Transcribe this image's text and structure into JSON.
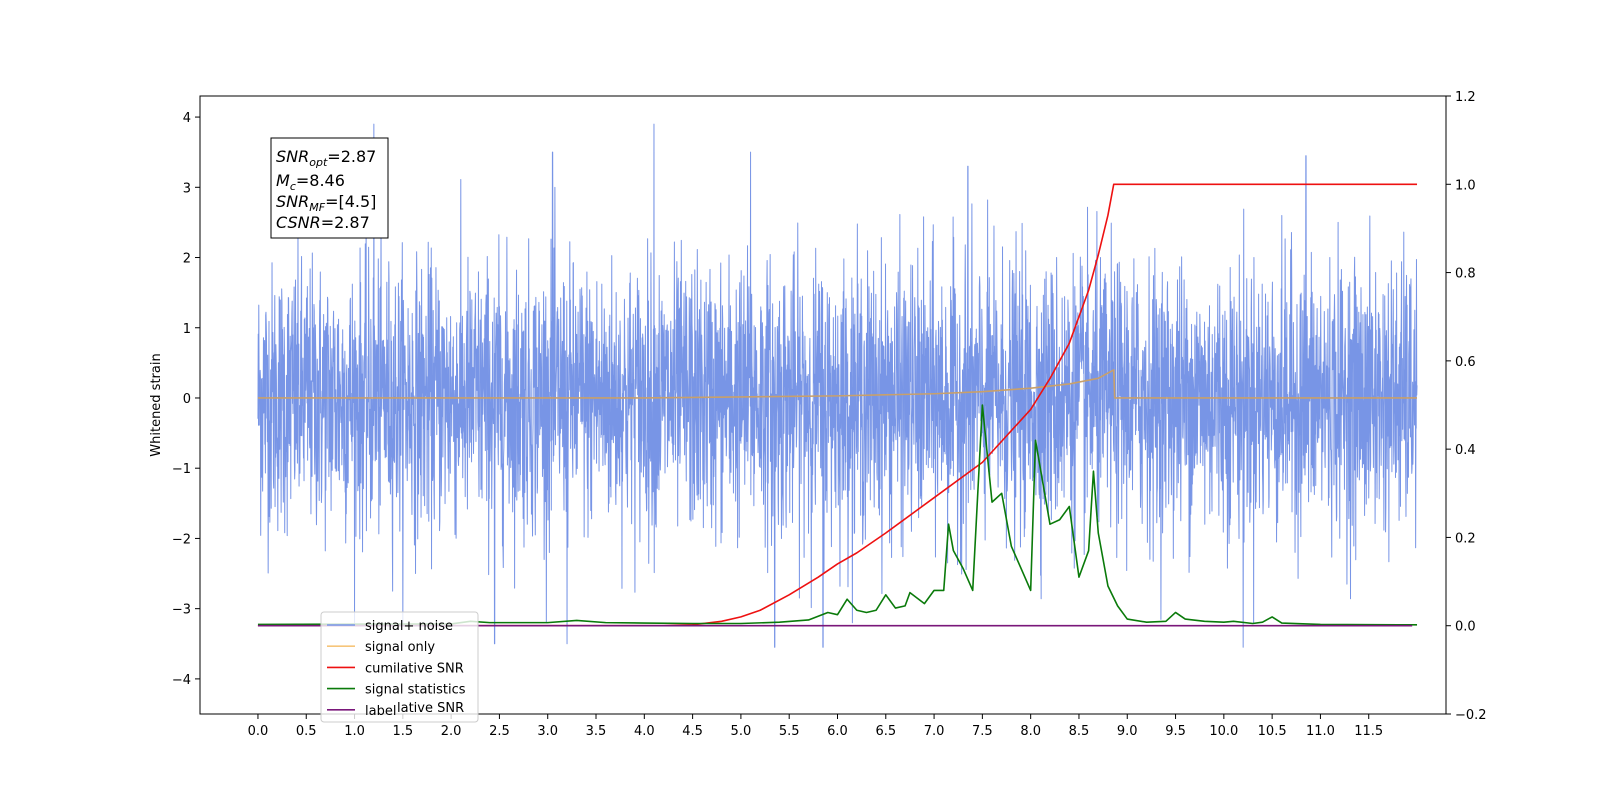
{
  "chart_data": {
    "type": "line",
    "ylabel": "Whitened strain",
    "xlim": [
      -0.6,
      12.3
    ],
    "ylim": [
      -4.5,
      4.3
    ],
    "ylim_right": [
      -0.2,
      1.2
    ],
    "x_ticks": [
      0.0,
      0.5,
      1.0,
      1.5,
      2.0,
      2.5,
      3.0,
      3.5,
      4.0,
      4.5,
      5.0,
      5.5,
      6.0,
      6.5,
      7.0,
      7.5,
      8.0,
      8.5,
      9.0,
      9.5,
      10.0,
      10.5,
      11.0,
      11.5
    ],
    "x_tick_labels": [
      "0.0",
      "0.5",
      "1.0",
      "1.5",
      "2.0",
      "2.5",
      "3.0",
      "3.5",
      "4.0",
      "4.5",
      "5.0",
      "5.5",
      "6.0",
      "6.5",
      "7.0",
      "7.5",
      "8.0",
      "8.5",
      "9.0",
      "9.5",
      "10.0",
      "10.5",
      "11.0",
      "11.5"
    ],
    "y_ticks": [
      4,
      3,
      2,
      1,
      0,
      -1,
      -2,
      -3,
      -4
    ],
    "y_tick_labels": [
      "4",
      "3",
      "2",
      "1",
      "0",
      "−1",
      "−2",
      "−3",
      "−4"
    ],
    "y_ticks_right": [
      1.2,
      1.0,
      0.8,
      0.6,
      0.4,
      0.2,
      0.0,
      -0.2
    ],
    "y_tick_labels_right": [
      "1.2",
      "1.0",
      "0.8",
      "0.6",
      "0.4",
      "0.2",
      "0.0",
      "−0.2"
    ],
    "grid": false,
    "legend_position": "lower-left",
    "annotation": {
      "snr_opt": {
        "base": "SNR",
        "sub": "opt",
        "value": "=2.87"
      },
      "mc": {
        "base": "M",
        "sub": "c",
        "value": "=8.46"
      },
      "snr_mf": {
        "base": "SNR",
        "sub": "MF",
        "value": "=[4.5]"
      },
      "csnr": {
        "base": "CSNR",
        "value": "=2.87"
      }
    },
    "series": [
      {
        "name": "signal+ noise",
        "color": "#7895e6",
        "axis": "left",
        "x_range": [
          0.0,
          12.0
        ],
        "amplitude_range": [
          -3.5,
          3.9
        ],
        "peaks": [
          {
            "x": 1.2,
            "y": 3.9
          },
          {
            "x": 4.1,
            "y": 3.9
          },
          {
            "x": 10.85,
            "y": 3.45
          },
          {
            "x": 7.35,
            "y": 3.3
          },
          {
            "x": 3.05,
            "y": 3.5
          },
          {
            "x": 5.1,
            "y": 3.5
          },
          {
            "x": 5.35,
            "y": -3.55
          },
          {
            "x": 3.2,
            "y": -3.5
          },
          {
            "x": 10.2,
            "y": -3.55
          },
          {
            "x": 5.85,
            "y": -3.55
          },
          {
            "x": 2.45,
            "y": -3.5
          }
        ]
      },
      {
        "name": "signal only",
        "color": "#c8a06b",
        "axis": "left",
        "x": [
          0.0,
          4.0,
          5.0,
          6.0,
          7.0,
          7.5,
          8.0,
          8.4,
          8.7,
          8.86,
          8.87,
          12.0
        ],
        "y": [
          0.0,
          0.0,
          0.015,
          0.03,
          0.06,
          0.09,
          0.14,
          0.2,
          0.28,
          0.4,
          0.0,
          0.0
        ]
      },
      {
        "name": "cumilative SNR",
        "color": "#ee1111",
        "axis": "right",
        "x": [
          0.0,
          4.2,
          4.5,
          4.8,
          5.0,
          5.2,
          5.5,
          5.8,
          6.0,
          6.2,
          6.5,
          7.0,
          7.5,
          8.0,
          8.2,
          8.4,
          8.6,
          8.7,
          8.8,
          8.86,
          9.0,
          12.0
        ],
        "y": [
          0.0,
          0.0,
          0.002,
          0.01,
          0.02,
          0.035,
          0.07,
          0.11,
          0.14,
          0.165,
          0.21,
          0.29,
          0.37,
          0.49,
          0.56,
          0.64,
          0.76,
          0.84,
          0.93,
          1.0,
          1.0,
          1.0
        ]
      },
      {
        "name": "signal statistics",
        "color": "#0a7a0a",
        "axis": "right",
        "x": [
          0.0,
          2.0,
          2.2,
          2.4,
          3.0,
          3.3,
          3.6,
          4.0,
          4.5,
          5.0,
          5.4,
          5.7,
          5.9,
          6.0,
          6.1,
          6.2,
          6.3,
          6.4,
          6.5,
          6.6,
          6.7,
          6.75,
          6.9,
          7.0,
          7.1,
          7.15,
          7.2,
          7.3,
          7.4,
          7.5,
          7.6,
          7.7,
          7.8,
          7.9,
          8.0,
          8.05,
          8.2,
          8.3,
          8.4,
          8.5,
          8.6,
          8.65,
          8.7,
          8.8,
          8.9,
          9.0,
          9.2,
          9.4,
          9.5,
          9.6,
          9.8,
          10.0,
          10.1,
          10.3,
          10.4,
          10.5,
          10.6,
          11.0,
          12.0
        ],
        "y": [
          0.003,
          0.004,
          0.01,
          0.007,
          0.007,
          0.012,
          0.007,
          0.006,
          0.005,
          0.005,
          0.008,
          0.013,
          0.03,
          0.025,
          0.06,
          0.035,
          0.03,
          0.035,
          0.07,
          0.04,
          0.045,
          0.075,
          0.05,
          0.08,
          0.08,
          0.23,
          0.17,
          0.13,
          0.08,
          0.5,
          0.28,
          0.3,
          0.18,
          0.13,
          0.08,
          0.42,
          0.23,
          0.24,
          0.27,
          0.11,
          0.17,
          0.35,
          0.21,
          0.09,
          0.045,
          0.015,
          0.008,
          0.01,
          0.03,
          0.015,
          0.01,
          0.008,
          0.01,
          0.005,
          0.008,
          0.02,
          0.006,
          0.003,
          0.002
        ]
      },
      {
        "name": "label",
        "color": "#7a177a",
        "axis": "right",
        "x": [
          0.0,
          11.95
        ],
        "y": [
          0.0,
          0.0
        ]
      }
    ],
    "legend_entries": [
      {
        "label": "signal+ noise",
        "color": "#7895e6"
      },
      {
        "label": "signal only",
        "color": "#f6c57a"
      },
      {
        "label": "cumilative SNR",
        "color": "#ee1111"
      },
      {
        "label": "signal statistics",
        "color": "#0a7a0a"
      },
      {
        "label": "label",
        "color": "#7a177a"
      }
    ],
    "legend_obscured_text": "lative SNR"
  }
}
